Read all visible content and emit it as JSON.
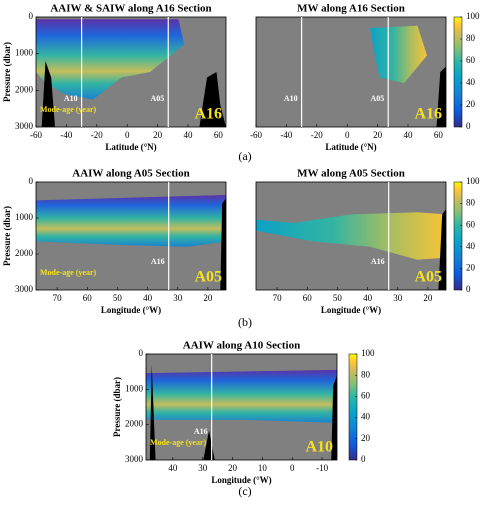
{
  "chart_data": [
    {
      "type": "heatmap",
      "title": "AAIW & SAIW along A16 Section",
      "xlabel": "Latitude (°N)",
      "ylabel": "Pressure (dbar)",
      "xlim": [
        -60,
        65
      ],
      "xticks": [
        -60,
        -40,
        -20,
        0,
        20,
        40,
        60
      ],
      "ylim": [
        0,
        3000
      ],
      "yticks": [
        0,
        1000,
        2000,
        3000
      ],
      "vlines": [
        -30,
        27
      ],
      "section_labels": [
        "A10",
        "A05"
      ],
      "section_name": "A16",
      "mode_label": "Mode-age (year)"
    },
    {
      "type": "heatmap",
      "title": "MW along A16 Section",
      "xlabel": "Latitude (°N)",
      "xlim": [
        -60,
        65
      ],
      "xticks": [
        -60,
        -40,
        -20,
        0,
        20,
        40,
        60
      ],
      "ylim": [
        0,
        3000
      ],
      "vlines": [
        -30,
        27
      ],
      "section_labels": [
        "A10",
        "A05"
      ],
      "section_name": "A16",
      "colorbar": {
        "ticks": [
          0,
          20,
          40,
          60,
          80,
          100
        ]
      }
    },
    {
      "type": "heatmap",
      "title": "AAIW along A05 Section",
      "xlabel": "Longitude (°W)",
      "ylabel": "Pressure (dbar)",
      "xlim": [
        77,
        14
      ],
      "xticks": [
        70,
        60,
        50,
        40,
        30,
        20
      ],
      "ylim": [
        0,
        3000
      ],
      "yticks": [
        0,
        1000,
        2000,
        3000
      ],
      "vlines": [
        33
      ],
      "section_labels": [
        "A16"
      ],
      "section_name": "A05",
      "mode_label": "Mode-age (year)"
    },
    {
      "type": "heatmap",
      "title": "MW along A05 Section",
      "xlabel": "Longitude (°W)",
      "xlim": [
        77,
        14
      ],
      "xticks": [
        70,
        60,
        50,
        40,
        30,
        20
      ],
      "ylim": [
        0,
        3000
      ],
      "vlines": [
        33
      ],
      "section_labels": [
        "A16"
      ],
      "section_name": "A05",
      "colorbar": {
        "ticks": [
          0,
          20,
          40,
          60,
          80,
          100
        ]
      }
    },
    {
      "type": "heatmap",
      "title": "AAIW along A10 Section",
      "xlabel": "Longitude (°W)",
      "ylabel": "Pressure (dbar)",
      "xlim": [
        49,
        -15
      ],
      "xticks": [
        40,
        30,
        20,
        10,
        0,
        -10
      ],
      "ylim": [
        0,
        3000
      ],
      "yticks": [
        0,
        1000,
        2000,
        3000
      ],
      "vlines": [
        27
      ],
      "section_labels": [
        "A16"
      ],
      "section_name": "A10",
      "mode_label": "Mode-age (year)",
      "colorbar": {
        "ticks": [
          0,
          20,
          40,
          60,
          80,
          100
        ]
      }
    }
  ],
  "captions": [
    "(a)",
    "(b)",
    "(c)"
  ]
}
